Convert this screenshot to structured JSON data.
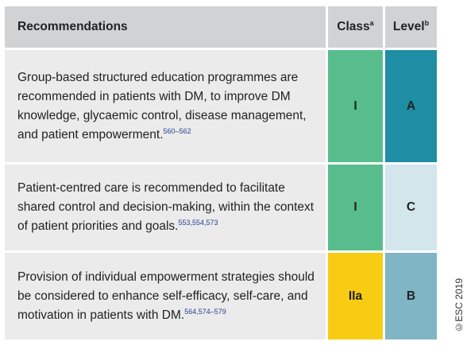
{
  "header": {
    "recommendations": "Recommendations",
    "class_label": "Class",
    "class_sup": "a",
    "level_label": "Level",
    "level_sup": "b"
  },
  "rows": [
    {
      "text": "Group-based structured education programmes are recommended in patients with DM, to improve DM knowledge, glycaemic control, disease management, and patient empowerment.",
      "refs": "560–562",
      "class": "I",
      "level": "A"
    },
    {
      "text": "Patient-centred care is recommended to facilitate shared control and decision-making, within the context of patient priorities and goals.",
      "refs": "553,554,573",
      "class": "I",
      "level": "C"
    },
    {
      "text": "Provision of individual empowerment strategies should be considered to enhance self-efficacy, self-care, and motivation in patients with DM.",
      "refs": "564,574–579",
      "class": "IIa",
      "level": "B"
    }
  ],
  "copyright": "©ESC 2019",
  "colors": {
    "header_bg": "#d1d2d3",
    "text_bg": "#ebebeb",
    "class_I": "#58bd8c",
    "class_IIa": "#f9cc14",
    "level_A": "#1f8da3",
    "level_B": "#7fb5c4",
    "level_C": "#d3e6ec",
    "ref_color": "#2a3f94"
  }
}
